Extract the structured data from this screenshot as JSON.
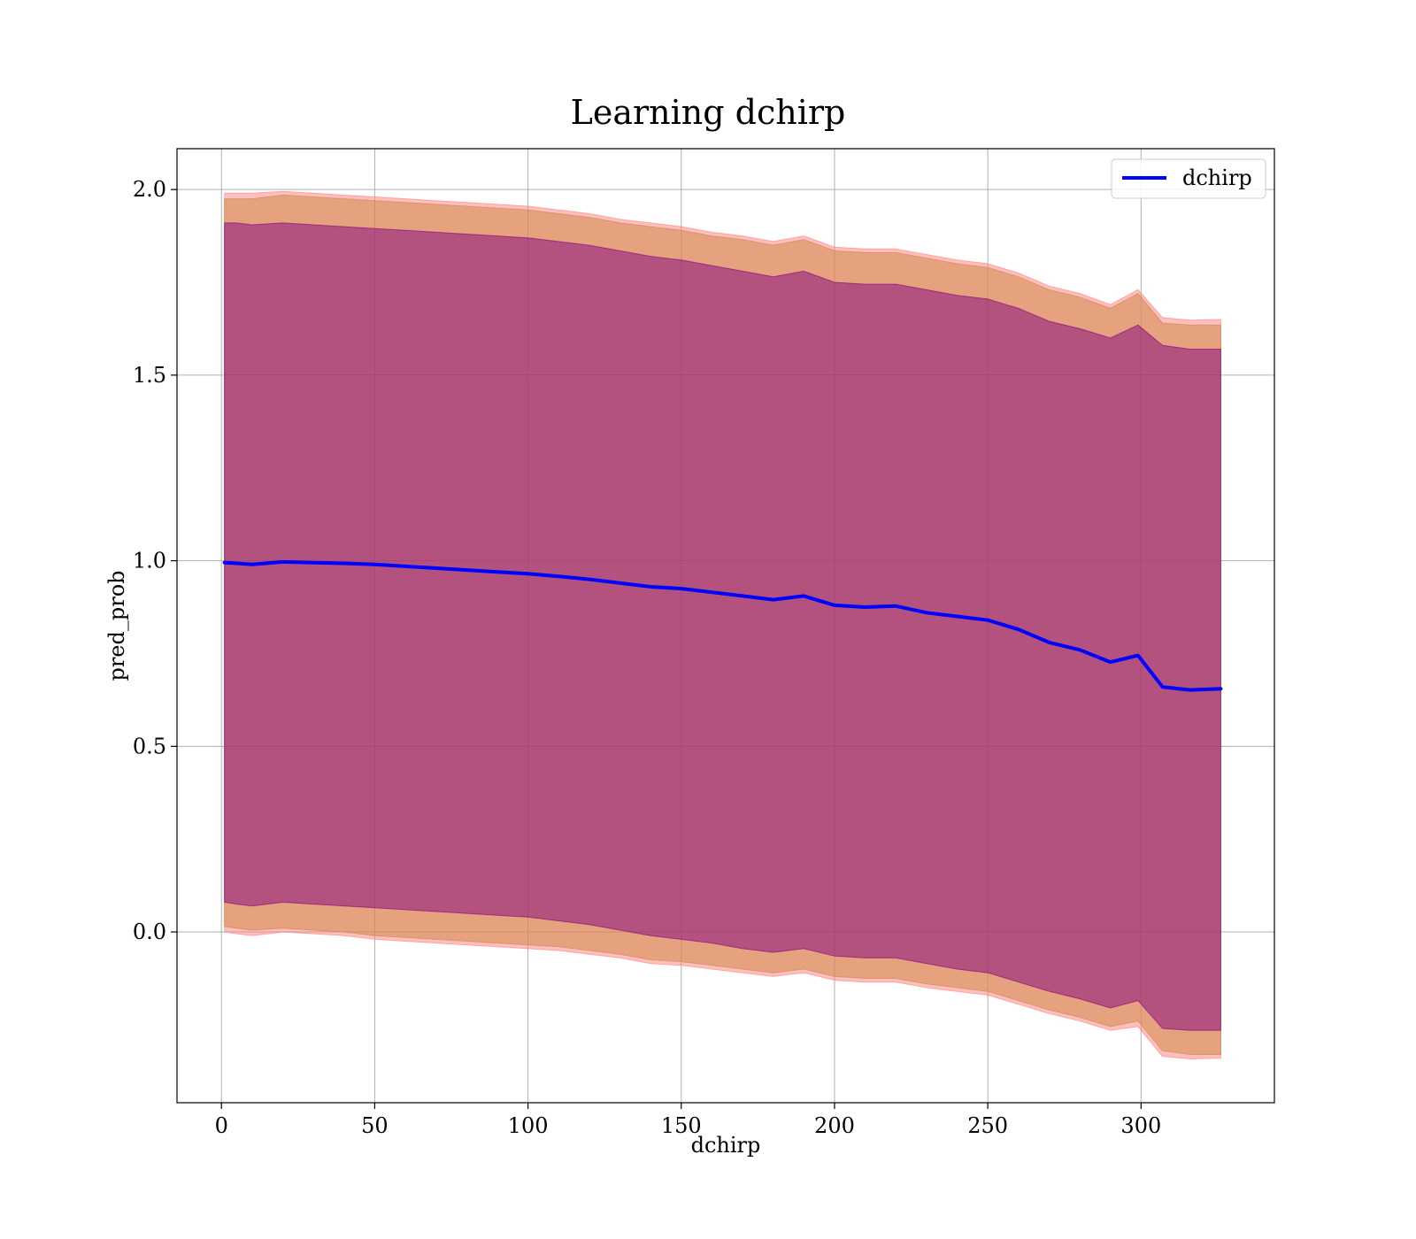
{
  "chart_data": {
    "type": "line",
    "title": "Learning dchirp",
    "xlabel": "dchirp",
    "ylabel": "pred_prob",
    "xlim": [
      -14.5,
      343.5
    ],
    "ylim": [
      -0.46,
      2.11
    ],
    "xticks": [
      0,
      50,
      100,
      150,
      200,
      250,
      300
    ],
    "yticks": [
      0.0,
      0.5,
      1.0,
      1.5,
      2.0
    ],
    "xtick_labels": [
      "0",
      "50",
      "100",
      "150",
      "200",
      "250",
      "300"
    ],
    "ytick_labels": [
      "0.0",
      "0.5",
      "1.0",
      "1.5",
      "2.0"
    ],
    "grid": true,
    "legend_position": "top-right",
    "series": [
      {
        "name": "dchirp",
        "color": "#0000ff",
        "x": [
          1,
          5,
          10,
          20,
          30,
          40,
          50,
          60,
          70,
          80,
          90,
          100,
          110,
          120,
          130,
          140,
          150,
          160,
          170,
          180,
          190,
          200,
          210,
          220,
          230,
          240,
          250,
          260,
          270,
          280,
          290,
          299,
          307,
          316,
          326
        ],
        "y": [
          0.995,
          0.993,
          0.99,
          0.997,
          0.995,
          0.993,
          0.99,
          0.985,
          0.98,
          0.975,
          0.97,
          0.965,
          0.958,
          0.95,
          0.94,
          0.93,
          0.925,
          0.915,
          0.905,
          0.895,
          0.905,
          0.88,
          0.875,
          0.878,
          0.86,
          0.85,
          0.84,
          0.815,
          0.78,
          0.76,
          0.727,
          0.745,
          0.66,
          0.652,
          0.655
        ]
      }
    ],
    "bands": [
      {
        "role": "outer",
        "fill": "#ff7f7f",
        "x": [
          1,
          5,
          10,
          20,
          30,
          40,
          50,
          60,
          70,
          80,
          90,
          100,
          110,
          120,
          130,
          140,
          150,
          160,
          170,
          180,
          190,
          200,
          210,
          220,
          230,
          240,
          250,
          260,
          270,
          280,
          290,
          299,
          307,
          316,
          326
        ],
        "upper": [
          1.99,
          1.99,
          1.99,
          1.995,
          1.99,
          1.985,
          1.98,
          1.975,
          1.97,
          1.965,
          1.96,
          1.955,
          1.945,
          1.935,
          1.92,
          1.91,
          1.9,
          1.885,
          1.875,
          1.86,
          1.875,
          1.845,
          1.84,
          1.84,
          1.825,
          1.81,
          1.8,
          1.775,
          1.74,
          1.72,
          1.69,
          1.73,
          1.655,
          1.648,
          1.65
        ],
        "lower": [
          0.0,
          -0.005,
          -0.01,
          0.0,
          -0.005,
          -0.01,
          -0.02,
          -0.025,
          -0.03,
          -0.035,
          -0.04,
          -0.045,
          -0.05,
          -0.06,
          -0.07,
          -0.085,
          -0.09,
          -0.1,
          -0.11,
          -0.12,
          -0.11,
          -0.13,
          -0.135,
          -0.135,
          -0.15,
          -0.16,
          -0.17,
          -0.195,
          -0.22,
          -0.24,
          -0.265,
          -0.255,
          -0.335,
          -0.342,
          -0.34
        ]
      },
      {
        "role": "middle",
        "fill": "#cd853f",
        "x": [
          1,
          5,
          10,
          20,
          30,
          40,
          50,
          60,
          70,
          80,
          90,
          100,
          110,
          120,
          130,
          140,
          150,
          160,
          170,
          180,
          190,
          200,
          210,
          220,
          230,
          240,
          250,
          260,
          270,
          280,
          290,
          299,
          307,
          316,
          326
        ],
        "upper": [
          1.975,
          1.975,
          1.975,
          1.985,
          1.98,
          1.975,
          1.97,
          1.965,
          1.96,
          1.955,
          1.95,
          1.945,
          1.935,
          1.925,
          1.91,
          1.9,
          1.89,
          1.875,
          1.865,
          1.85,
          1.865,
          1.835,
          1.83,
          1.83,
          1.815,
          1.8,
          1.79,
          1.765,
          1.73,
          1.71,
          1.68,
          1.72,
          1.64,
          1.635,
          1.635
        ],
        "lower": [
          0.015,
          0.01,
          0.005,
          0.01,
          0.005,
          0.0,
          -0.01,
          -0.015,
          -0.02,
          -0.025,
          -0.03,
          -0.035,
          -0.04,
          -0.05,
          -0.06,
          -0.075,
          -0.08,
          -0.09,
          -0.1,
          -0.11,
          -0.1,
          -0.12,
          -0.125,
          -0.125,
          -0.14,
          -0.15,
          -0.16,
          -0.185,
          -0.21,
          -0.23,
          -0.255,
          -0.24,
          -0.32,
          -0.33,
          -0.33
        ]
      },
      {
        "role": "inner",
        "fill": "#800080",
        "x": [
          1,
          5,
          10,
          20,
          30,
          40,
          50,
          60,
          70,
          80,
          90,
          100,
          110,
          120,
          130,
          140,
          150,
          160,
          170,
          180,
          190,
          200,
          210,
          220,
          230,
          240,
          250,
          260,
          270,
          280,
          290,
          299,
          307,
          316,
          326
        ],
        "upper": [
          1.91,
          1.91,
          1.905,
          1.91,
          1.905,
          1.9,
          1.895,
          1.89,
          1.885,
          1.88,
          1.875,
          1.87,
          1.86,
          1.85,
          1.835,
          1.82,
          1.81,
          1.795,
          1.78,
          1.765,
          1.78,
          1.75,
          1.745,
          1.745,
          1.73,
          1.715,
          1.705,
          1.68,
          1.645,
          1.625,
          1.6,
          1.635,
          1.58,
          1.57,
          1.57
        ],
        "lower": [
          0.08,
          0.075,
          0.07,
          0.08,
          0.075,
          0.07,
          0.065,
          0.06,
          0.055,
          0.05,
          0.045,
          0.04,
          0.03,
          0.02,
          0.005,
          -0.01,
          -0.02,
          -0.03,
          -0.045,
          -0.055,
          -0.045,
          -0.065,
          -0.07,
          -0.07,
          -0.085,
          -0.1,
          -0.11,
          -0.135,
          -0.16,
          -0.18,
          -0.205,
          -0.185,
          -0.26,
          -0.265,
          -0.265
        ]
      }
    ]
  }
}
